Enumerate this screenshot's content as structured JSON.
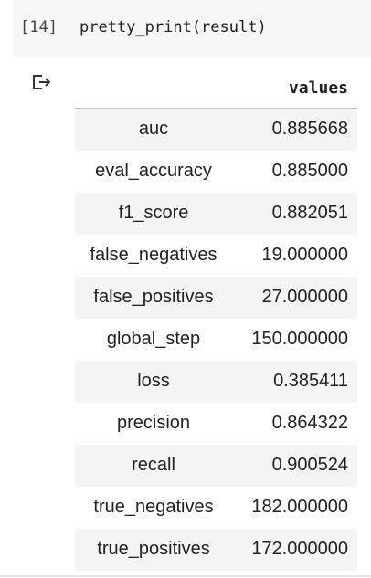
{
  "cell": {
    "execution_count": "[14]",
    "code": "pretty_print(result)"
  },
  "output": {
    "icon": "output-redirect-icon",
    "column_header": "values",
    "rows": [
      {
        "label": "auc",
        "value": "0.885668"
      },
      {
        "label": "eval_accuracy",
        "value": "0.885000"
      },
      {
        "label": "f1_score",
        "value": "0.882051"
      },
      {
        "label": "false_negatives",
        "value": "19.000000"
      },
      {
        "label": "false_positives",
        "value": "27.000000"
      },
      {
        "label": "global_step",
        "value": "150.000000"
      },
      {
        "label": "loss",
        "value": "0.385411"
      },
      {
        "label": "precision",
        "value": "0.864322"
      },
      {
        "label": "recall",
        "value": "0.900524"
      },
      {
        "label": "true_negatives",
        "value": "182.000000"
      },
      {
        "label": "true_positives",
        "value": "172.000000"
      }
    ]
  },
  "colors": {
    "cell_background": "#f7f7f7",
    "stripe": "#f4f4f4",
    "text": "#212121"
  }
}
